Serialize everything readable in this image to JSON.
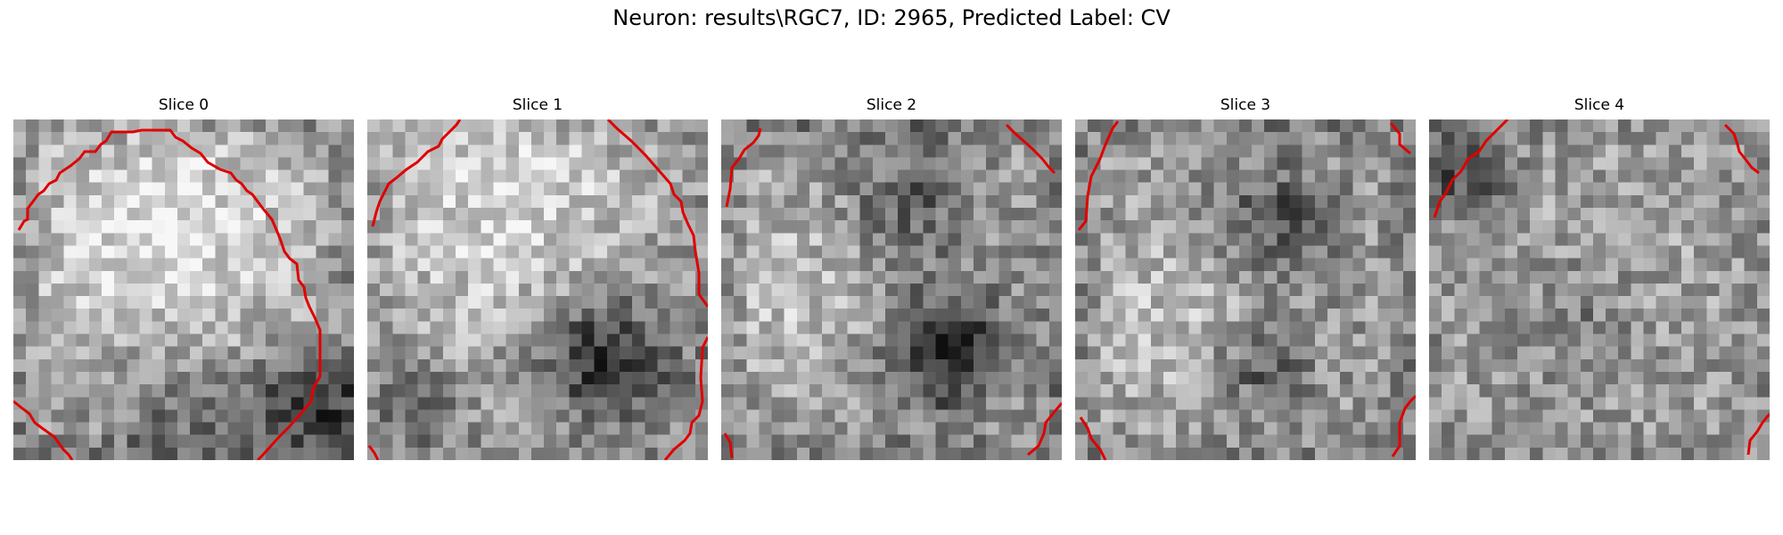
{
  "figure": {
    "title": "Neuron: results\\RGC7, ID: 2965, Predicted Label: CV",
    "contour_color": "#e00000",
    "slices": [
      {
        "label": "Slice 0",
        "darkness": [
          {
            "u": 0.87,
            "v": 0.82,
            "r": 0.1,
            "a": 0.45
          },
          {
            "u": 0.5,
            "v": 0.85,
            "r": 0.16,
            "a": 0.22
          }
        ],
        "lightness": [
          {
            "u": 0.45,
            "v": 0.35,
            "r": 0.3,
            "a": 0.28
          }
        ],
        "rim": 0.12
      },
      {
        "label": "Slice 1",
        "darkness": [
          {
            "u": 0.7,
            "v": 0.7,
            "r": 0.14,
            "a": 0.45
          },
          {
            "u": 0.15,
            "v": 0.85,
            "r": 0.1,
            "a": 0.2
          }
        ],
        "lightness": [
          {
            "u": 0.4,
            "v": 0.25,
            "r": 0.28,
            "a": 0.25
          }
        ],
        "rim": 0.05
      },
      {
        "label": "Slice 2",
        "darkness": [
          {
            "u": 0.66,
            "v": 0.68,
            "r": 0.12,
            "a": 0.5
          },
          {
            "u": 0.55,
            "v": 0.25,
            "r": 0.12,
            "a": 0.25
          }
        ],
        "lightness": [
          {
            "u": 0.2,
            "v": 0.5,
            "r": 0.2,
            "a": 0.15
          }
        ],
        "rim": 0.15
      },
      {
        "label": "Slice 3",
        "darkness": [
          {
            "u": 0.6,
            "v": 0.3,
            "r": 0.12,
            "a": 0.3
          },
          {
            "u": 0.55,
            "v": 0.72,
            "r": 0.1,
            "a": 0.28
          }
        ],
        "lightness": [
          {
            "u": 0.3,
            "v": 0.6,
            "r": 0.2,
            "a": 0.15
          }
        ],
        "rim": 0.12
      },
      {
        "label": "Slice 4",
        "darkness": [
          {
            "u": 0.45,
            "v": 0.55,
            "r": 0.14,
            "a": 0.18
          },
          {
            "u": 0.1,
            "v": 0.15,
            "r": 0.1,
            "a": 0.3
          }
        ],
        "lightness": [
          {
            "u": 0.5,
            "v": 0.45,
            "r": 0.2,
            "a": 0.1
          }
        ],
        "rim": 0.05
      }
    ]
  }
}
